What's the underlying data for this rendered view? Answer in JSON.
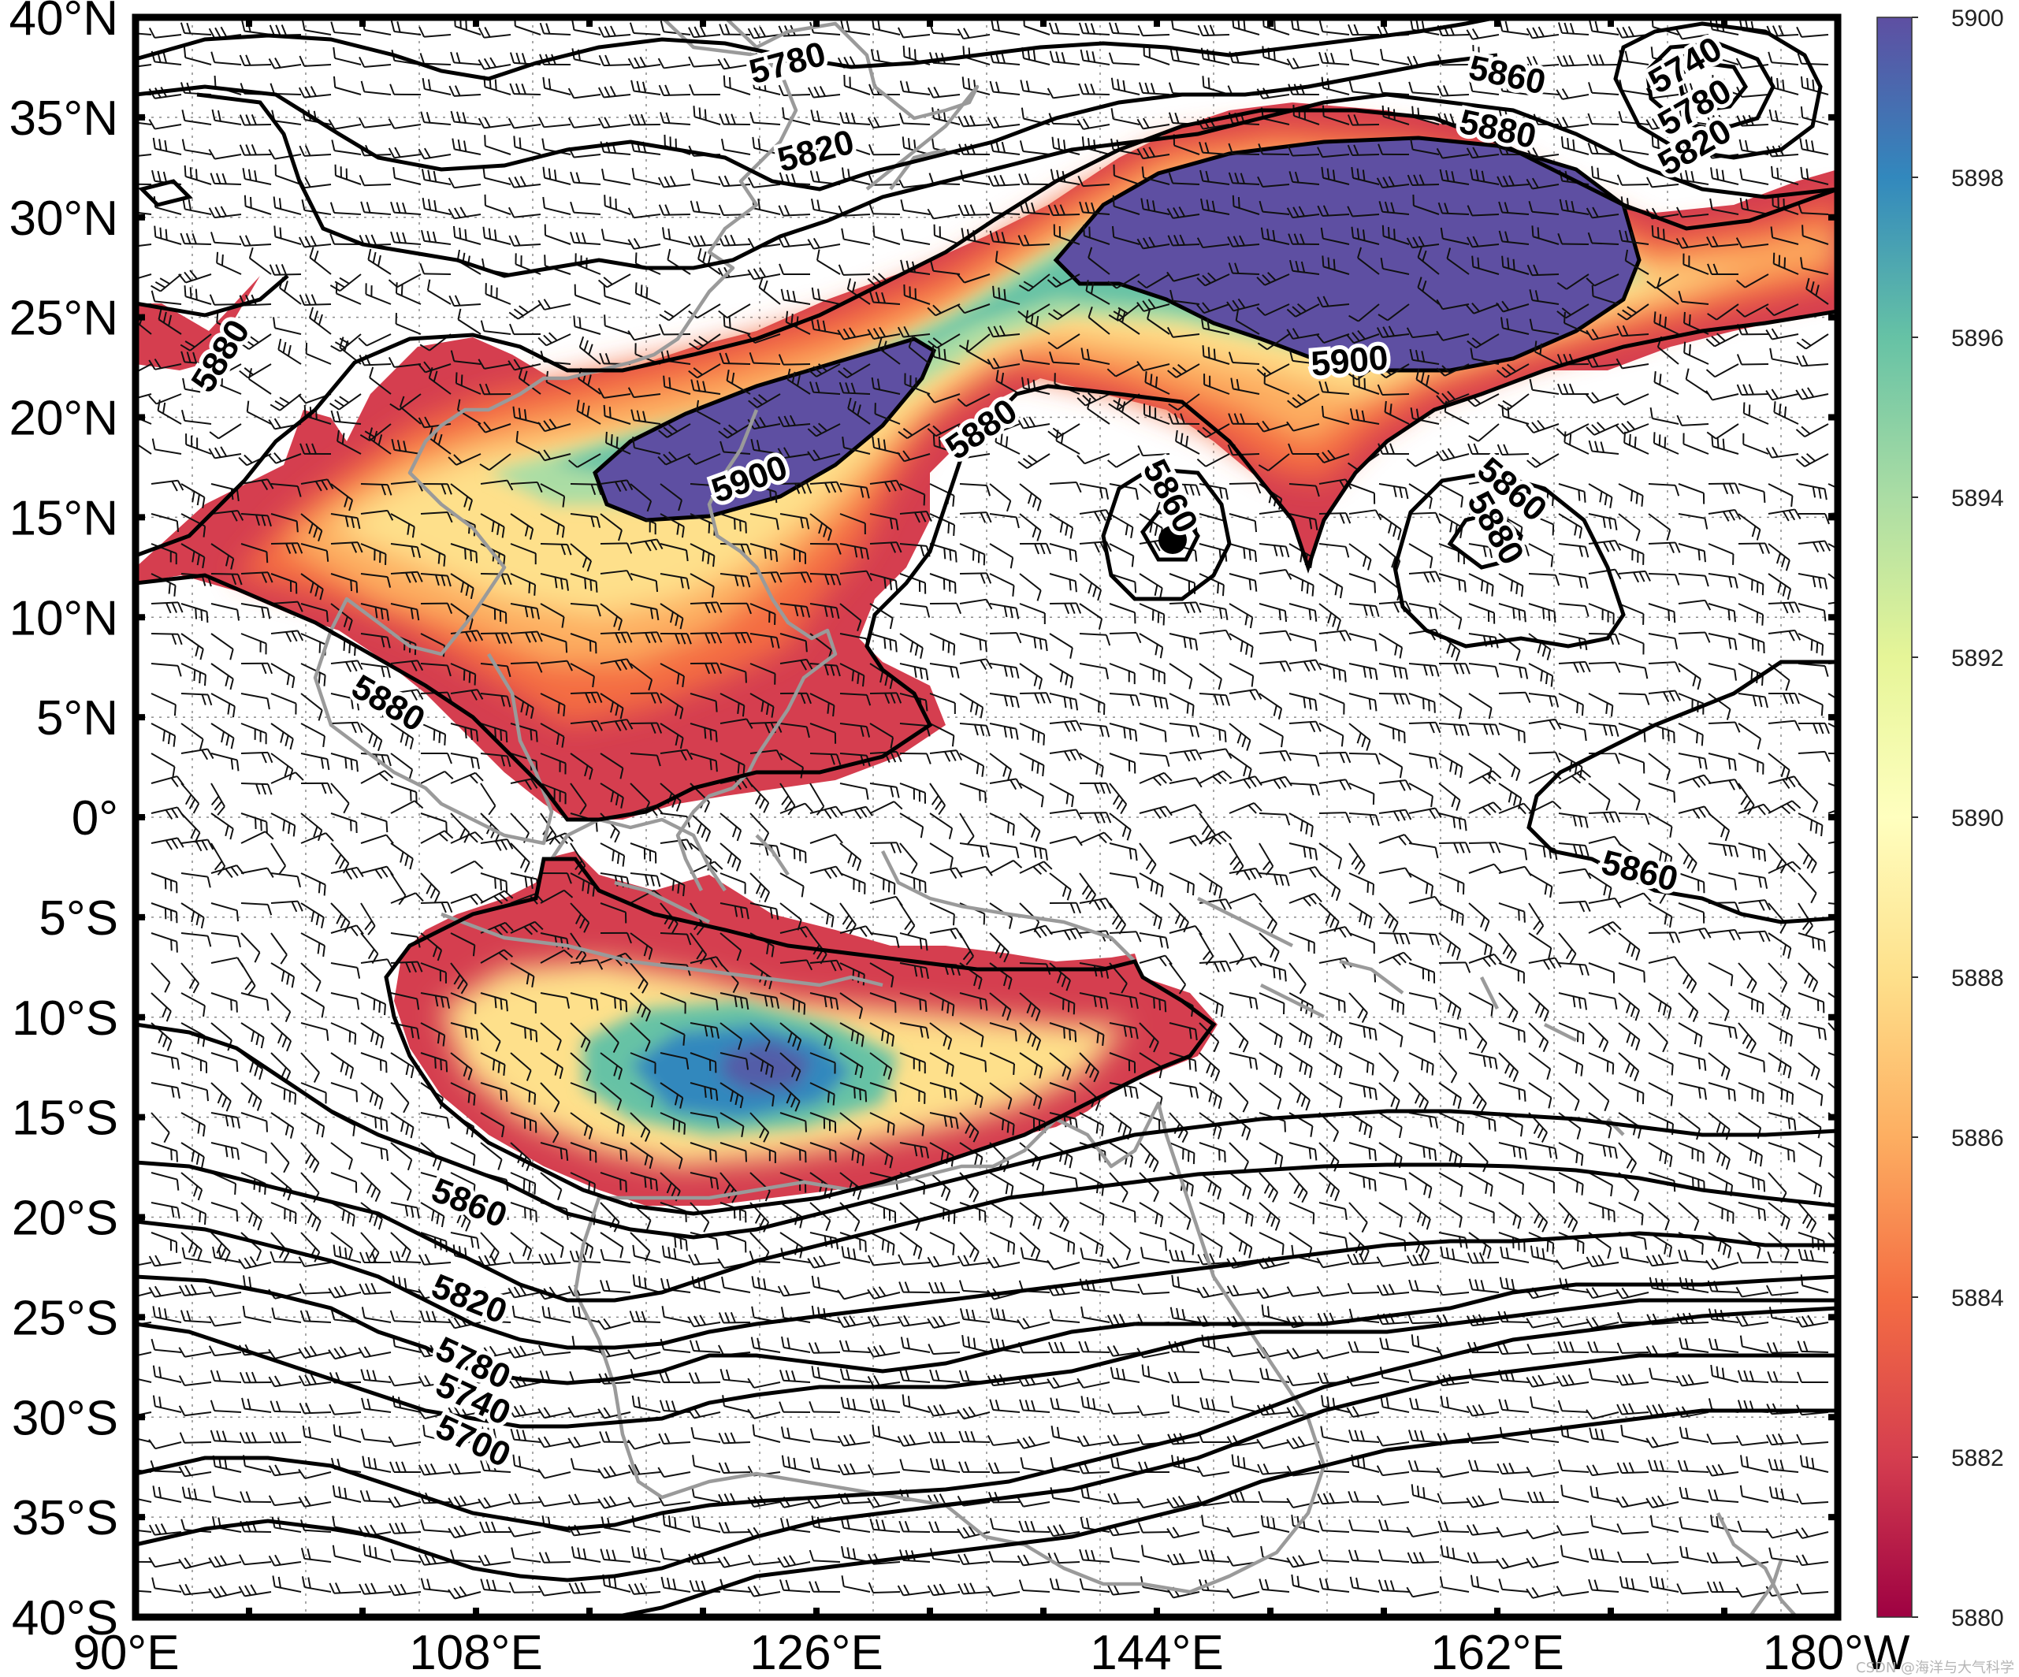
{
  "map": {
    "extent": {
      "lon_min": 90,
      "lon_max": 180,
      "lat_min": -40,
      "lat_max": 40
    },
    "x_ticks": [
      "90°E",
      "108°E",
      "126°E",
      "144°E",
      "162°E",
      "180°W"
    ],
    "y_ticks": [
      "40°N",
      "35°N",
      "30°N",
      "25°N",
      "20°N",
      "15°N",
      "10°N",
      "5°N",
      "0°",
      "5°S",
      "10°S",
      "15°S",
      "20°S",
      "25°S",
      "30°S",
      "35°S",
      "40°S"
    ],
    "contour_labels": [
      {
        "text": "5780",
        "lon": 124.5,
        "lat": 37.6,
        "angle": -15
      },
      {
        "text": "5820",
        "lon": 126.0,
        "lat": 33.2,
        "angle": -15
      },
      {
        "text": "5860",
        "lon": 162.5,
        "lat": 37.0,
        "angle": 12
      },
      {
        "text": "5880",
        "lon": 162.0,
        "lat": 34.3,
        "angle": 12
      },
      {
        "text": "5740",
        "lon": 172.0,
        "lat": 37.5,
        "angle": -30
      },
      {
        "text": "5780",
        "lon": 172.5,
        "lat": 35.4,
        "angle": -30
      },
      {
        "text": "5820",
        "lon": 172.5,
        "lat": 33.4,
        "angle": -30
      },
      {
        "text": "5880",
        "lon": 94.6,
        "lat": 23.0,
        "angle": -58
      },
      {
        "text": "5900",
        "lon": 122.5,
        "lat": 16.8,
        "angle": -20
      },
      {
        "text": "5880",
        "lon": 134.8,
        "lat": 19.3,
        "angle": -35
      },
      {
        "text": "5900",
        "lon": 154.2,
        "lat": 22.7,
        "angle": -5
      },
      {
        "text": "5860",
        "lon": 144.6,
        "lat": 16.0,
        "angle": 62
      },
      {
        "text": "5860",
        "lon": 162.7,
        "lat": 16.3,
        "angle": 40
      },
      {
        "text": "5880",
        "lon": 161.8,
        "lat": 14.4,
        "angle": 60
      },
      {
        "text": "5880",
        "lon": 103.3,
        "lat": 5.6,
        "angle": 30
      },
      {
        "text": "5860",
        "lon": 169.5,
        "lat": -2.8,
        "angle": 14
      },
      {
        "text": "5860",
        "lon": 107.6,
        "lat": -19.4,
        "angle": 22
      },
      {
        "text": "5820",
        "lon": 107.6,
        "lat": -24.2,
        "angle": 22
      },
      {
        "text": "5780",
        "lon": 107.8,
        "lat": -27.4,
        "angle": 25
      },
      {
        "text": "5740",
        "lon": 107.8,
        "lat": -29.2,
        "angle": 25
      },
      {
        "text": "5700",
        "lon": 107.8,
        "lat": -31.3,
        "angle": 25
      }
    ],
    "colorbar": {
      "min": 5880,
      "max": 5900,
      "labels": [
        "5900",
        "5898",
        "5896",
        "5894",
        "5892",
        "5890",
        "5888",
        "5886",
        "5884",
        "5882",
        "5880"
      ],
      "colors": [
        "#9e0142",
        "#d53e4f",
        "#f46d43",
        "#fdae61",
        "#fee08b",
        "#ffffbf",
        "#e6f598",
        "#abdda4",
        "#66c2a5",
        "#3288bd",
        "#5e4fa2"
      ]
    },
    "watermark": "CSDN @海洋与大气科学"
  }
}
